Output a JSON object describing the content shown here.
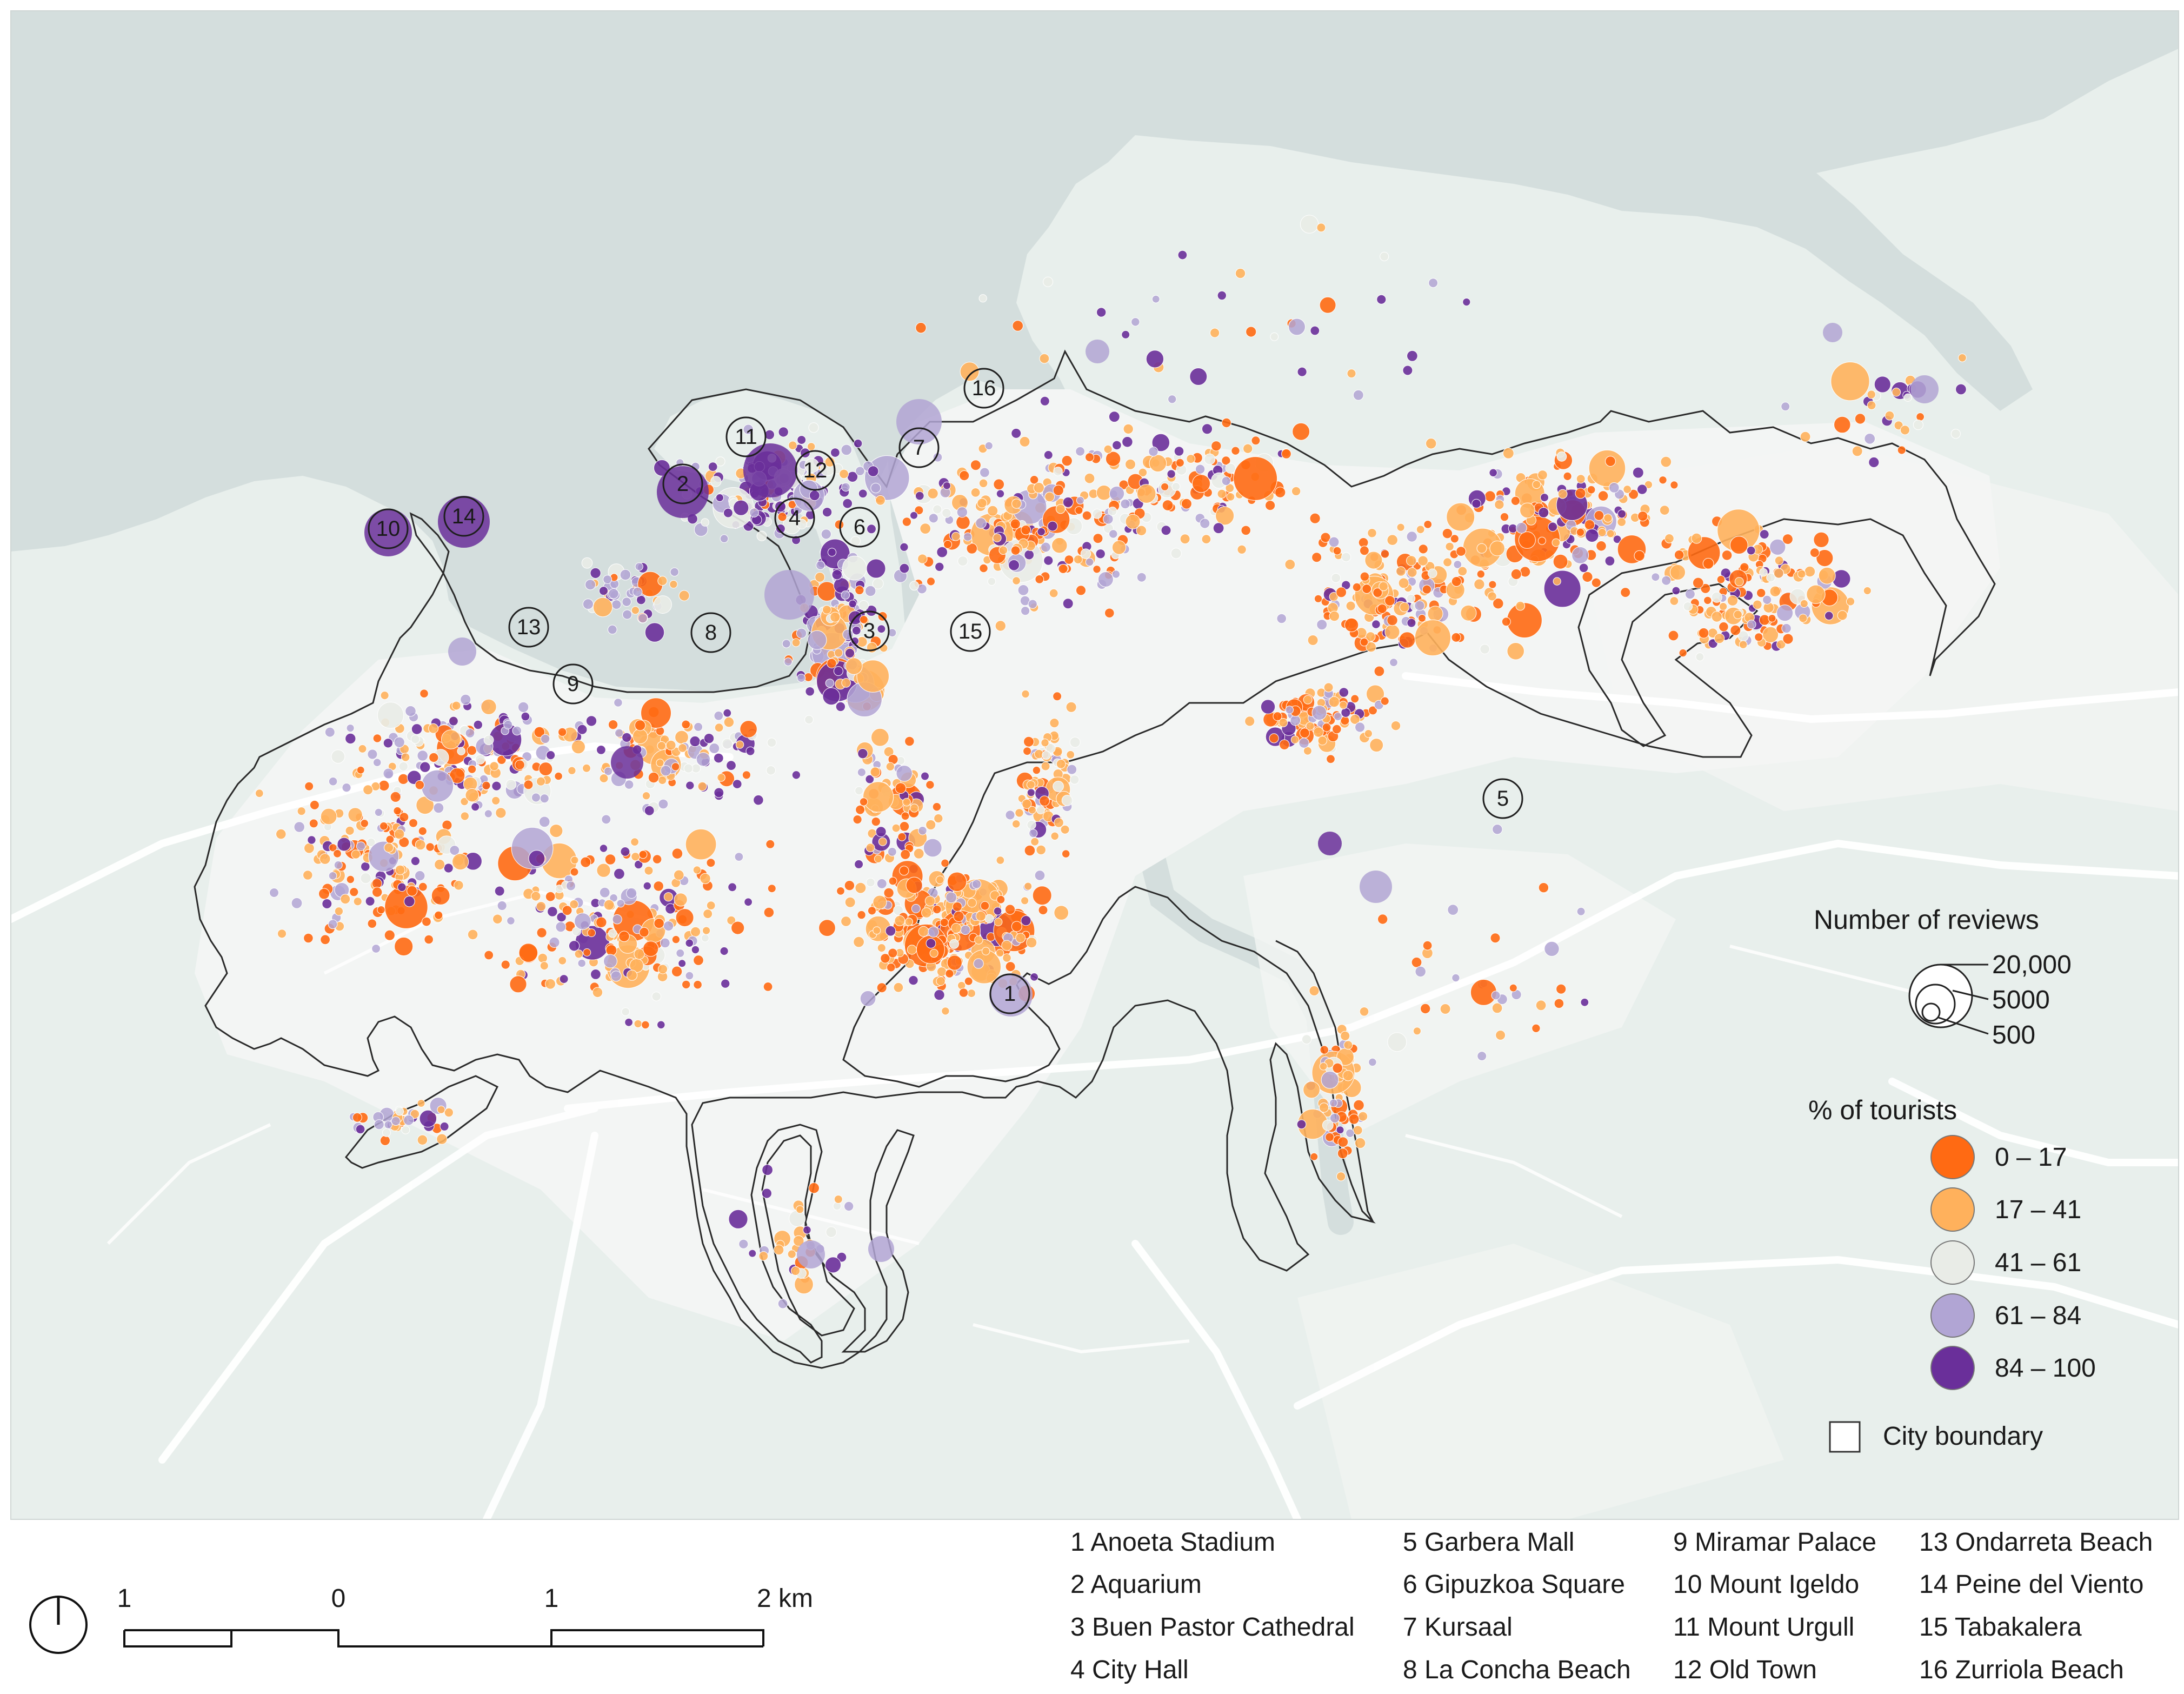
{
  "legend": {
    "reviews_title": "Number of reviews",
    "review_sizes": [
      "20,000",
      "5000",
      "500"
    ],
    "tourists_title": "% of tourists",
    "tourist_classes": [
      {
        "label": "0 – 17",
        "color": "#ff6a13"
      },
      {
        "label": "17 – 41",
        "color": "#ffb15c"
      },
      {
        "label": "41 – 61",
        "color": "#e9ece7"
      },
      {
        "label": "61 – 84",
        "color": "#b1a5d4"
      },
      {
        "label": "84 – 100",
        "color": "#6a2f9a"
      }
    ],
    "boundary_label": "City boundary"
  },
  "colors": {
    "sea": "#d4dedd",
    "land": "#e8efec",
    "urban": "#f3f5f4",
    "boundary": "#2a2a2a"
  },
  "landmarks": [
    {
      "n": "1",
      "name": "Anoeta Stadium"
    },
    {
      "n": "2",
      "name": "Aquarium"
    },
    {
      "n": "3",
      "name": "Buen Pastor Cathedral"
    },
    {
      "n": "4",
      "name": "City Hall"
    },
    {
      "n": "5",
      "name": "Garbera Mall"
    },
    {
      "n": "6",
      "name": "Gipuzkoa Square"
    },
    {
      "n": "7",
      "name": "Kursaal"
    },
    {
      "n": "8",
      "name": "La Concha Beach"
    },
    {
      "n": "9",
      "name": "Miramar Palace"
    },
    {
      "n": "10",
      "name": "Mount Igeldo"
    },
    {
      "n": "11",
      "name": "Mount Urgull"
    },
    {
      "n": "12",
      "name": "Old Town"
    },
    {
      "n": "13",
      "name": "Ondarreta Beach"
    },
    {
      "n": "14",
      "name": "Peine del Viento"
    },
    {
      "n": "15",
      "name": "Tabakalera"
    },
    {
      "n": "16",
      "name": "Zurriola Beach"
    }
  ],
  "landmark_labels": [
    "1 Anoeta Stadium",
    "2 Aquarium",
    "3 Buen Pastor Cathedral",
    "4 City Hall",
    "5 Garbera Mall",
    "6 Gipuzkoa Square",
    "7 Kursaal",
    "8 La Concha Beach",
    "9 Miramar Palace",
    "10 Mount Igeldo",
    "11 Mount Urgull",
    "12 Old Town",
    "13 Ondarreta Beach",
    "14 Peine del Viento",
    "15 Tabakalera",
    "16 Zurriola Beach"
  ],
  "scale_bar": {
    "labels": [
      "1",
      "0",
      "1",
      "2 km"
    ]
  },
  "north_icon": "north-arrow-icon"
}
